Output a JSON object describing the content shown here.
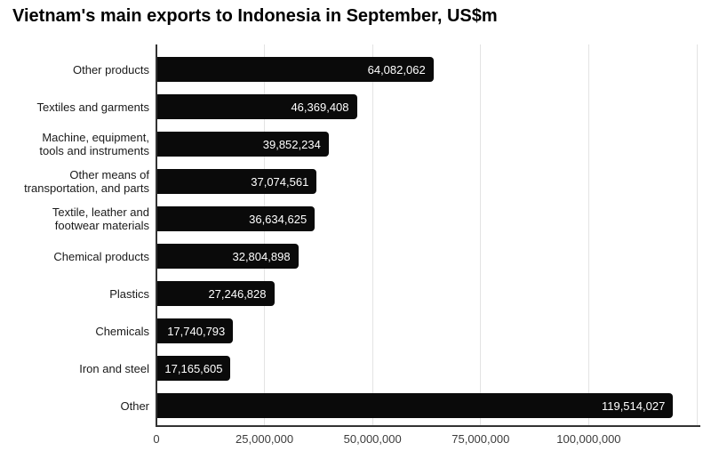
{
  "title": "Vietnam's main exports to Indonesia in September, US$m",
  "chart_data": {
    "type": "bar",
    "orientation": "horizontal",
    "title": "Vietnam's main exports to Indonesia in September, US$m",
    "categories": [
      "Other products",
      "Textiles and garments",
      "Machine, equipment,\ntools and instruments",
      "Other means of\ntransportation, and parts",
      "Textile, leather and\nfootwear materials",
      "Chemical products",
      "Plastics",
      "Chemicals",
      "Iron and steel",
      "Other"
    ],
    "values": [
      64082062,
      46369408,
      39852234,
      37074561,
      36634625,
      32804898,
      27246828,
      17740793,
      17165605,
      119514027
    ],
    "value_labels": [
      "64,082,062",
      "46,369,408",
      "39,852,234",
      "37,074,561",
      "36,634,625",
      "32,804,898",
      "27,246,828",
      "17,740,793",
      "17,165,605",
      "119,514,027"
    ],
    "x_ticks": [
      {
        "label": "0",
        "value": 0
      },
      {
        "label": "25,000,000",
        "value": 25000000
      },
      {
        "label": "50,000,000",
        "value": 50000000
      },
      {
        "label": "75,000,000",
        "value": 75000000
      },
      {
        "label": "100,000,000",
        "value": 100000000
      }
    ],
    "xlim": [
      0,
      125000000
    ],
    "xlabel": "",
    "ylabel": "",
    "grid": true,
    "legend": "none",
    "colors": {
      "bar": "#0a0a0a",
      "value_label": "#ffffff",
      "gridline": "#e3e3e3",
      "axis": "#333333",
      "tick_label": "#3c3c3c",
      "category_label": "#1a1a1a",
      "background": "#ffffff"
    }
  }
}
